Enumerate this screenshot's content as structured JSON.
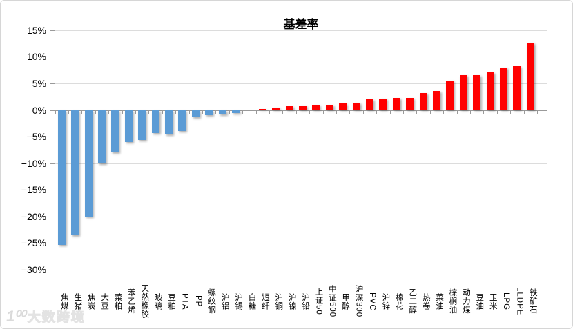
{
  "title": "基差率",
  "watermark": {
    "logo": "1⁰⁰",
    "text": "大数跨境"
  },
  "colors": {
    "positive_bar": "#FF0000",
    "negative_bar": "#5B9BD5",
    "gridline": "#DCDCDC",
    "axis": "#9A9A9A",
    "title_text": "#000000"
  },
  "chart_data": {
    "type": "bar",
    "title": "基差率",
    "xlabel": "",
    "ylabel": "",
    "ylim": [
      -30,
      15
    ],
    "ytick_step": 5,
    "grid": "horizontal-only",
    "legend": "none",
    "value_unit": "percent",
    "bar_color_rule": "negative values blue (#5B9BD5), positive values red (#FF0000)",
    "yticks": [
      {
        "label": "15%",
        "value": 15
      },
      {
        "label": "10%",
        "value": 10
      },
      {
        "label": "5%",
        "value": 5
      },
      {
        "label": "0%",
        "value": 0
      },
      {
        "label": "−5%",
        "value": -5
      },
      {
        "label": "−10%",
        "value": -10
      },
      {
        "label": "−15%",
        "value": -15
      },
      {
        "label": "−20%",
        "value": -20
      },
      {
        "label": "−25%",
        "value": -25
      },
      {
        "label": "−30%",
        "value": -30
      }
    ],
    "categories": [
      "焦煤",
      "生猪",
      "焦炭",
      "大豆",
      "菜粕",
      "苯乙烯",
      "天然橡胶",
      "玻璃",
      "豆粕",
      "PTA",
      "PP",
      "螺纹钢",
      "沪铝",
      "沪锡",
      "白糖",
      "短纤",
      "沪铜",
      "沪镍",
      "沪铅",
      "上证50",
      "中证500",
      "甲醇",
      "沪深300",
      "PVC",
      "沪锌",
      "棉花",
      "乙二醇",
      "热卷",
      "菜油",
      "棕榈油",
      "动力煤",
      "豆油",
      "玉米",
      "LPG",
      "LLDPE",
      "铁矿石"
    ],
    "values": [
      -25.3,
      -23.5,
      -20.0,
      -10.0,
      -8.0,
      -6.0,
      -5.7,
      -4.4,
      -4.6,
      -3.9,
      -1.4,
      -1.0,
      -0.9,
      -0.6,
      0.0,
      0.2,
      0.5,
      0.7,
      0.9,
      1.0,
      1.0,
      1.2,
      1.4,
      2.0,
      2.2,
      2.3,
      2.3,
      3.2,
      3.5,
      5.5,
      6.5,
      6.5,
      7.0,
      8.0,
      8.2,
      12.6
    ]
  }
}
